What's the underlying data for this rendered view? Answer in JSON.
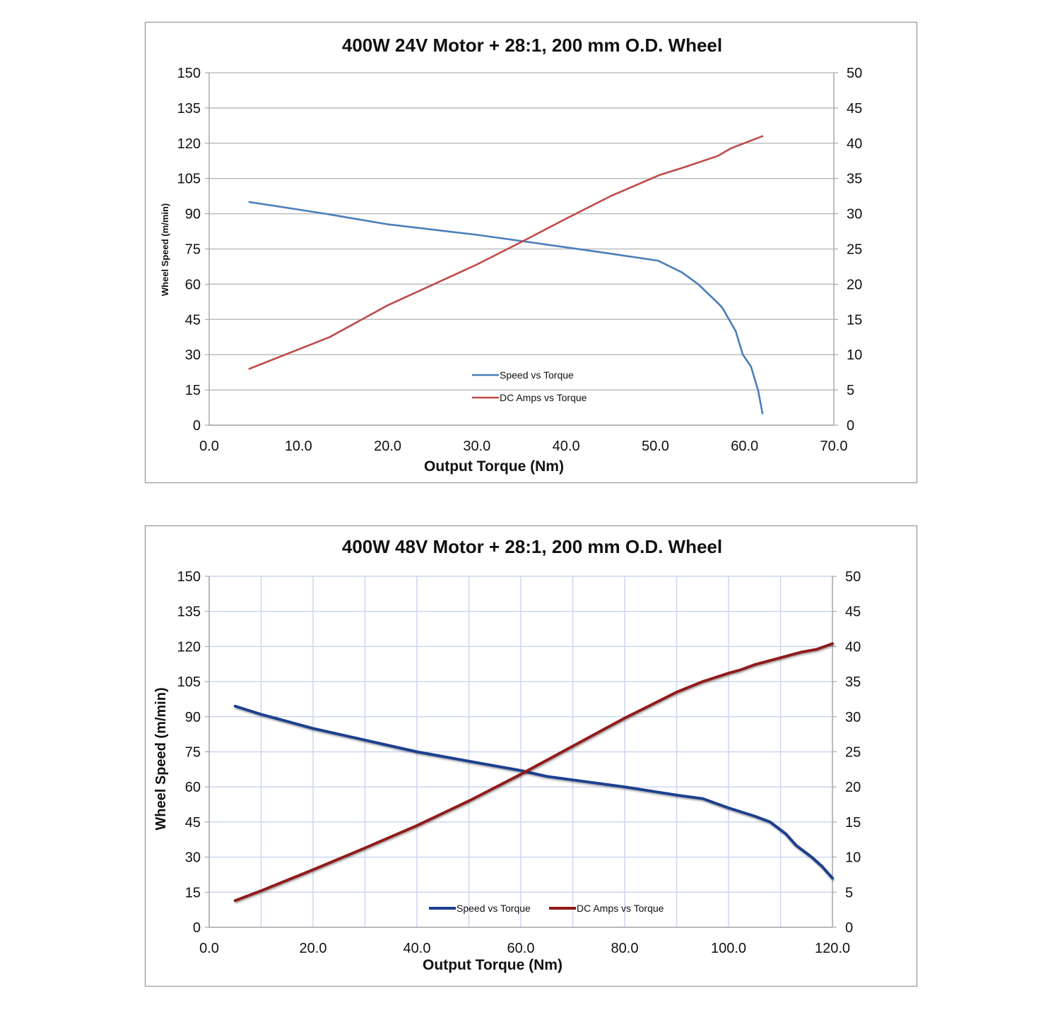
{
  "chart_data": [
    {
      "type": "line",
      "title": "400W 24V Motor + 28:1, 200 mm O.D. Wheel",
      "xlabel": "Output Torque (Nm)",
      "ylabel": "Wheel Speed (m/min)",
      "y2label": "",
      "xlim": [
        0,
        70
      ],
      "ylim": [
        0,
        150
      ],
      "y2lim": [
        0,
        50
      ],
      "xticks": [
        "0.0",
        "10.0",
        "20.0",
        "30.0",
        "40.0",
        "50.0",
        "60.0",
        "70.0"
      ],
      "yticks": [
        "0",
        "15",
        "30",
        "45",
        "60",
        "75",
        "90",
        "105",
        "120",
        "135",
        "150"
      ],
      "y2ticks": [
        "0",
        "5",
        "10",
        "15",
        "20",
        "25",
        "30",
        "35",
        "40",
        "45",
        "50"
      ],
      "grid": "horizontal",
      "legend_position": "bottom-center",
      "series": [
        {
          "name": "Speed vs Torque",
          "axis": "left",
          "color": "#4a7ebb",
          "x": [
            4.5,
            13,
            20,
            30,
            40,
            45,
            50.3,
            53,
            54.8,
            57,
            57.5,
            59,
            59.8,
            60.7,
            61.5,
            62
          ],
          "y": [
            95,
            90,
            85.5,
            81,
            75.7,
            73,
            70,
            65,
            60,
            52,
            50,
            40,
            30,
            25,
            15,
            5
          ]
        },
        {
          "name": "DC Amps vs Torque",
          "axis": "right",
          "color": "#be4b48",
          "x": [
            4.5,
            13.5,
            20,
            30,
            35,
            40,
            45,
            50.5,
            53,
            57,
            58.5,
            62
          ],
          "y": [
            8,
            12.5,
            17,
            22.8,
            26,
            29.3,
            32.5,
            35.5,
            36.5,
            38.2,
            39.3,
            41
          ]
        }
      ]
    },
    {
      "type": "line",
      "title": "400W 48V Motor + 28:1, 200 mm O.D. Wheel",
      "xlabel": "Output Torque  (Nm)",
      "ylabel": "Wheel Speed (m/min)",
      "xlim": [
        0,
        120
      ],
      "ylim": [
        0,
        150
      ],
      "y2lim": [
        0,
        50
      ],
      "xticks": [
        "0.0",
        "20.0",
        "40.0",
        "60.0",
        "80.0",
        "100.0",
        "120.0"
      ],
      "yticks": [
        "0",
        "15",
        "30",
        "45",
        "60",
        "75",
        "90",
        "105",
        "120",
        "135",
        "150"
      ],
      "y2ticks": [
        "0",
        "5",
        "10",
        "15",
        "20",
        "25",
        "30",
        "35",
        "40",
        "45",
        "50"
      ],
      "grid": "both",
      "legend_position": "bottom-center",
      "series": [
        {
          "name": "Speed vs Torque",
          "axis": "left",
          "color": "#1f3f8f",
          "x": [
            5,
            10,
            15,
            20,
            30,
            40,
            50,
            60,
            65,
            70,
            80,
            90,
            95,
            100,
            105,
            108,
            111,
            113,
            116,
            118,
            120
          ],
          "y": [
            94.5,
            91,
            88,
            85,
            80,
            75,
            71,
            67,
            64.5,
            63,
            60,
            56.5,
            55,
            51,
            47.5,
            45,
            40,
            35,
            30,
            26,
            21
          ]
        },
        {
          "name": "DC Amps vs Torque",
          "axis": "right",
          "color": "#8f1a1a",
          "x": [
            5,
            10,
            15,
            20,
            30,
            40,
            50,
            60,
            70,
            80,
            90,
            95,
            100,
            102,
            105,
            110,
            112,
            114,
            117,
            120
          ],
          "y": [
            3.8,
            5.2,
            6.7,
            8.2,
            11.3,
            14.5,
            18,
            21.8,
            25.8,
            29.8,
            33.5,
            35,
            36.2,
            36.6,
            37.4,
            38.4,
            38.8,
            39.2,
            39.6,
            40.4
          ]
        }
      ]
    }
  ]
}
